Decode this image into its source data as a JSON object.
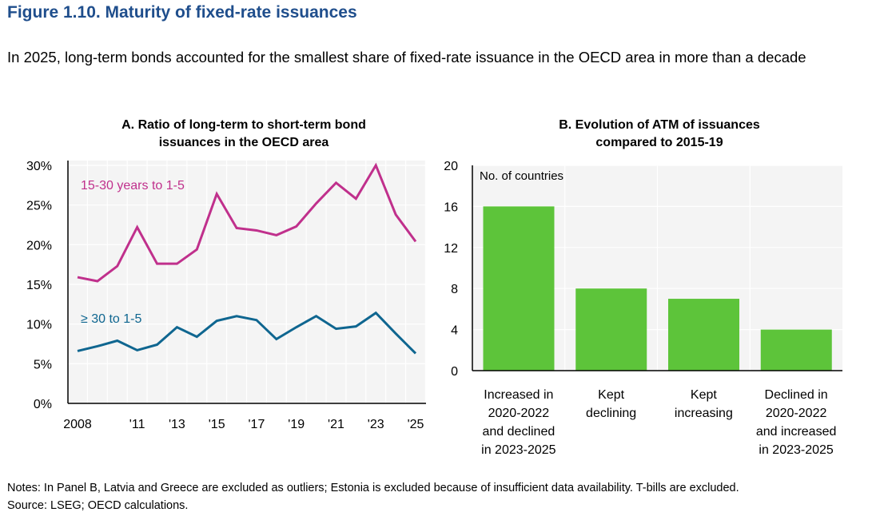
{
  "figure": {
    "title": "Figure 1.10. Maturity of fixed-rate issuances",
    "subtitle": "In 2025, long-term bonds accounted for the smallest share of fixed-rate issuance in the OECD area in more than a decade",
    "notes": "Notes: In Panel B, Latvia and Greece are excluded as outliers; Estonia is excluded because of insufficient data availability. T-bills are excluded.",
    "source": "Source: LSEG; OECD calculations."
  },
  "colors": {
    "title": "#1f4e8c",
    "magenta": "#c0308c",
    "blue": "#0f6690",
    "green": "#5dc43a",
    "plot_bg": "#f4f4f4"
  },
  "chart_data": [
    {
      "type": "line",
      "title_line1": "A. Ratio of long-term to short-term bond",
      "title_line2": "issuances in the OECD area",
      "x": [
        2008,
        2009,
        2010,
        2011,
        2012,
        2013,
        2014,
        2015,
        2016,
        2017,
        2018,
        2019,
        2020,
        2021,
        2022,
        2023,
        2024,
        2025
      ],
      "x_tick_labels": [
        {
          "x": 2008,
          "label": "2008"
        },
        {
          "x": 2011,
          "label": "'11"
        },
        {
          "x": 2013,
          "label": "'13"
        },
        {
          "x": 2015,
          "label": "'15"
        },
        {
          "x": 2017,
          "label": "'17"
        },
        {
          "x": 2019,
          "label": "'19"
        },
        {
          "x": 2021,
          "label": "'21"
        },
        {
          "x": 2023,
          "label": "'23"
        },
        {
          "x": 2025,
          "label": "'25"
        }
      ],
      "y_ticks": [
        0,
        5,
        10,
        15,
        20,
        25,
        30
      ],
      "y_tick_labels": [
        "0%",
        "5%",
        "10%",
        "15%",
        "20%",
        "25%",
        "30%"
      ],
      "ylim": [
        0,
        30
      ],
      "grid": true,
      "series": [
        {
          "name": "15-30 years to 1-5",
          "color": "#c0308c",
          "values": [
            15.9,
            15.4,
            17.3,
            22.2,
            17.6,
            17.6,
            19.4,
            26.4,
            22.1,
            21.8,
            21.2,
            22.3,
            25.2,
            27.8,
            25.8,
            30.0,
            23.8,
            20.4
          ]
        },
        {
          "name": "≥ 30 to 1-5",
          "color": "#0f6690",
          "values": [
            6.6,
            7.2,
            7.9,
            6.7,
            7.4,
            9.6,
            8.4,
            10.4,
            11.0,
            10.5,
            8.1,
            9.6,
            11.0,
            9.4,
            9.7,
            11.4,
            8.8,
            6.3
          ]
        }
      ]
    },
    {
      "type": "bar",
      "title_line1": "B. Evolution of ATM of issuances",
      "title_line2": "compared to 2015-19",
      "ylabel": "No. of countries",
      "categories": [
        [
          "Increased in",
          "2020-2022",
          "and declined",
          "in 2023-2025"
        ],
        [
          "Kept",
          "declining"
        ],
        [
          "Kept",
          "increasing"
        ],
        [
          "Declined in",
          "2020-2022",
          "and increased",
          "in 2023-2025"
        ]
      ],
      "values": [
        16,
        8,
        7,
        4
      ],
      "y_ticks": [
        0,
        4,
        8,
        12,
        16,
        20
      ],
      "y_tick_labels": [
        "0",
        "4",
        "8",
        "12",
        "16",
        "20"
      ],
      "ylim": [
        0,
        20
      ],
      "grid": true
    }
  ]
}
